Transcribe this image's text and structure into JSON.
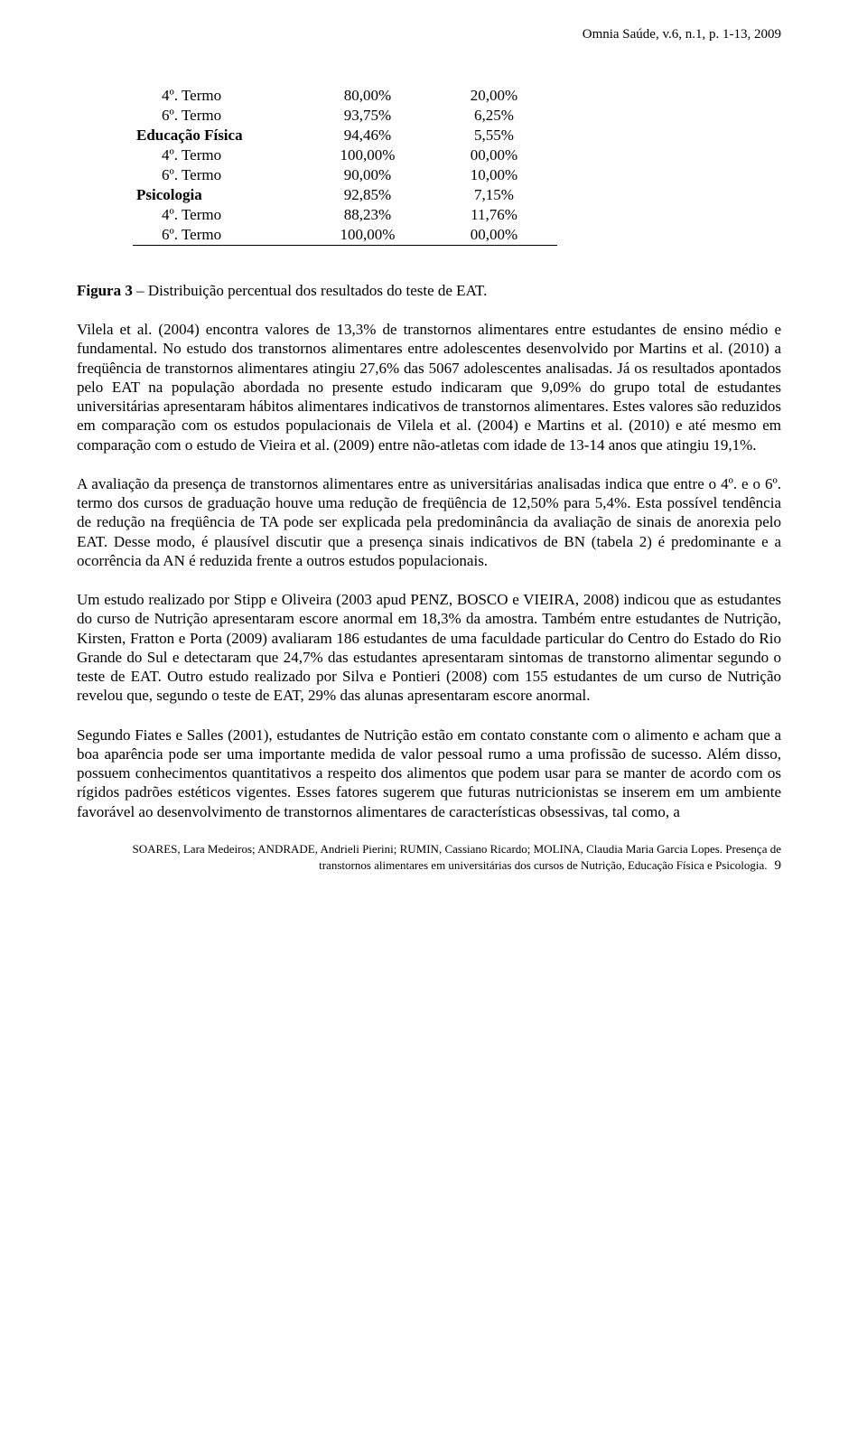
{
  "header": {
    "text": "Omnia Saúde, v.6, n.1, p. 1-13, 2009"
  },
  "table": {
    "rows": [
      {
        "indent": true,
        "c1": "4º. Termo",
        "c2": "80,00%",
        "c3": "20,00%"
      },
      {
        "indent": true,
        "c1": "6º. Termo",
        "c2": "93,75%",
        "c3": "6,25%"
      },
      {
        "section": true,
        "c1": "Educação Física",
        "c2": "94,46%",
        "c3": "5,55%"
      },
      {
        "indent": true,
        "c1": "4º. Termo",
        "c2": "100,00%",
        "c3": "00,00%"
      },
      {
        "indent": true,
        "c1": "6º. Termo",
        "c2": "90,00%",
        "c3": "10,00%"
      },
      {
        "section": true,
        "c1": "Psicologia",
        "c2": "92,85%",
        "c3": "7,15%"
      },
      {
        "indent": true,
        "c1": "4º. Termo",
        "c2": "88,23%",
        "c3": "11,76%"
      },
      {
        "indent": true,
        "last": true,
        "c1": "6º. Termo",
        "c2": "100,00%",
        "c3": "00,00%"
      }
    ]
  },
  "figure": {
    "label": "Figura 3",
    "caption": " – Distribuição percentual dos resultados do teste de EAT."
  },
  "paragraphs": {
    "p1": "Vilela et al. (2004) encontra valores de 13,3% de transtornos alimentares entre estudantes de ensino médio e fundamental. No estudo dos transtornos alimentares entre adolescentes desenvolvido por Martins et al. (2010) a freqüência de transtornos alimentares atingiu 27,6% das 5067 adolescentes analisadas. Já os resultados apontados pelo EAT na população abordada no presente estudo indicaram que 9,09% do grupo total de estudantes universitárias apresentaram hábitos alimentares indicativos de transtornos alimentares. Estes valores são reduzidos em comparação com os estudos populacionais de Vilela et al. (2004) e Martins et al. (2010) e até mesmo em comparação com o estudo de Vieira et al. (2009) entre não-atletas com idade de 13-14 anos que atingiu 19,1%.",
    "p2": "A avaliação da presença de transtornos alimentares entre as universitárias analisadas indica que entre o 4º. e o 6º. termo dos cursos de graduação houve uma redução de freqüência de 12,50% para 5,4%. Esta possível tendência de redução na freqüência de TA pode ser explicada pela predominância da avaliação de sinais de anorexia pelo EAT. Desse modo, é plausível discutir que a presença sinais indicativos de BN (tabela 2) é predominante e a ocorrência da AN é reduzida frente a outros estudos populacionais.",
    "p3": "Um estudo realizado por Stipp e Oliveira (2003 apud PENZ, BOSCO e VIEIRA, 2008) indicou que as estudantes do curso de Nutrição apresentaram escore anormal em 18,3% da amostra. Também entre estudantes de Nutrição, Kirsten, Fratton e Porta (2009) avaliaram 186 estudantes de uma faculdade particular do Centro do Estado do Rio Grande do Sul e detectaram que 24,7% das estudantes apresentaram sintomas de transtorno alimentar segundo o teste de EAT. Outro estudo realizado por Silva e Pontieri (2008) com 155 estudantes de um curso de Nutrição revelou que, segundo o teste de EAT, 29% das alunas apresentaram escore anormal.",
    "p4": "Segundo Fiates e Salles (2001), estudantes de Nutrição estão em contato constante com o alimento e acham que a boa aparência pode ser uma importante medida de valor pessoal rumo a uma profissão de sucesso. Além disso, possuem conhecimentos quantitativos a respeito dos alimentos que podem usar para se manter de acordo com os rígidos padrões estéticos vigentes. Esses fatores sugerem que futuras nutricionistas se inserem em um ambiente favorável ao desenvolvimento de transtornos alimentares de características obsessivas, tal como, a"
  },
  "footer": {
    "line1": "SOARES, Lara Medeiros; ANDRADE, Andrieli Pierini; RUMIN, Cassiano Ricardo; MOLINA, Claudia Maria Garcia Lopes. Presença de",
    "line2": "transtornos alimentares em universitárias dos cursos de Nutrição, Educação Física e Psicologia.",
    "pageNum": "9"
  }
}
